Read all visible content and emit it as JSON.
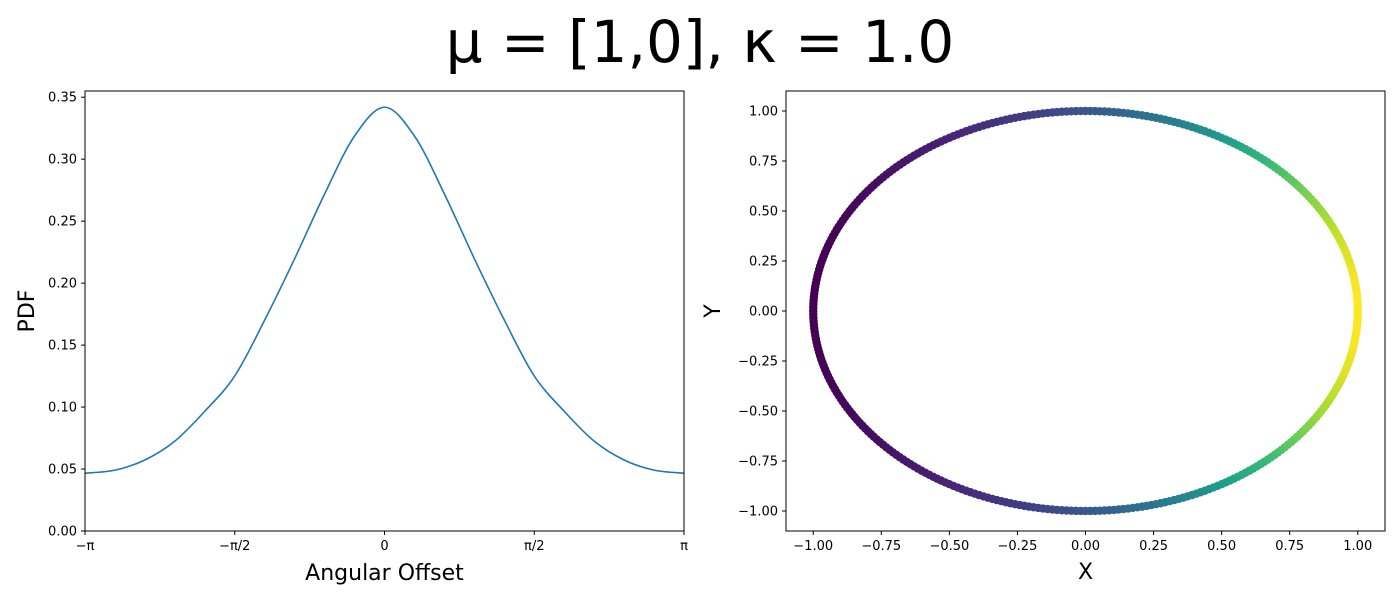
{
  "title": "μ = [1,0],  κ = 1.0",
  "chart_data": [
    {
      "type": "line",
      "xlabel": "Angular Offset",
      "ylabel": "PDF",
      "xlim": [
        -3.14159,
        3.14159
      ],
      "ylim": [
        0,
        0.355
      ],
      "xticks": [
        -3.14159,
        -1.5708,
        0,
        1.5708,
        3.14159
      ],
      "xtick_labels": [
        "−π",
        "−π/2",
        "0",
        "π/2",
        "π"
      ],
      "yticks": [
        0.0,
        0.05,
        0.1,
        0.15,
        0.2,
        0.25,
        0.3,
        0.35
      ],
      "ytick_labels": [
        "0.00",
        "0.05",
        "0.10",
        "0.15",
        "0.20",
        "0.25",
        "0.30",
        "0.35"
      ],
      "grid": false,
      "series": [
        {
          "color": "#1f77b4",
          "x": [
            -3.14159,
            -2.82743,
            -2.51327,
            -2.19911,
            -1.88496,
            -1.5708,
            -1.25664,
            -0.94248,
            -0.62832,
            -0.31416,
            0,
            0.31416,
            0.62832,
            0.94248,
            1.25664,
            1.5708,
            1.88496,
            2.19911,
            2.51327,
            2.82743,
            3.14159
          ],
          "y": [
            0.0466,
            0.0491,
            0.0573,
            0.0725,
            0.0966,
            0.1251,
            0.1702,
            0.2197,
            0.2719,
            0.3187,
            0.3419,
            0.3187,
            0.2719,
            0.2197,
            0.1702,
            0.1251,
            0.0966,
            0.0725,
            0.0573,
            0.0491,
            0.0466
          ]
        }
      ]
    },
    {
      "type": "scatter",
      "xlabel": "X",
      "ylabel": "Y",
      "xlim": [
        -1.1,
        1.1
      ],
      "ylim": [
        -1.1,
        1.1
      ],
      "xticks": [
        -1.0,
        -0.75,
        -0.5,
        -0.25,
        0.0,
        0.25,
        0.5,
        0.75,
        1.0
      ],
      "xtick_labels": [
        "−1.00",
        "−0.75",
        "−0.50",
        "−0.25",
        "0.00",
        "0.25",
        "0.50",
        "0.75",
        "1.00"
      ],
      "yticks": [
        -1.0,
        -0.75,
        -0.5,
        -0.25,
        0.0,
        0.25,
        0.5,
        0.75,
        1.0
      ],
      "ytick_labels": [
        "−1.00",
        "−0.75",
        "−0.50",
        "−0.25",
        "0.00",
        "0.25",
        "0.50",
        "0.75",
        "1.00"
      ],
      "grid": false,
      "colormap": "viridis",
      "color_by": "PDF",
      "points": "unit circle, x = cos θ, y = sin θ, θ from −π to π, colored by PDF value"
    }
  ]
}
